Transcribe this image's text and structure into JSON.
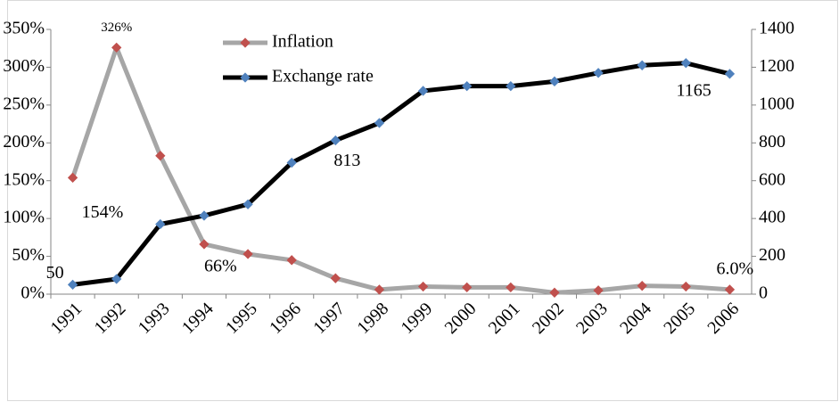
{
  "chart_data": {
    "type": "line",
    "categories": [
      "1991",
      "1992",
      "1993",
      "1994",
      "1995",
      "1996",
      "1997",
      "1998",
      "1999",
      "2000",
      "2001",
      "2002",
      "2003",
      "2004",
      "2005",
      "2006"
    ],
    "ylim": [
      0,
      350
    ],
    "yticks": [
      {
        "value": 0,
        "label": "0%"
      },
      {
        "value": 50,
        "label": "50%"
      },
      {
        "value": 100,
        "label": "100%"
      },
      {
        "value": 150,
        "label": "150%"
      },
      {
        "value": 200,
        "label": "200%"
      },
      {
        "value": 250,
        "label": "250%"
      },
      {
        "value": 300,
        "label": "300%"
      },
      {
        "value": 350,
        "label": "350%"
      }
    ],
    "y2lim": [
      0,
      1400
    ],
    "y2ticks": [
      0,
      200,
      400,
      600,
      800,
      1000,
      1200,
      1400
    ],
    "series": [
      {
        "name": "Inflation",
        "color": "#a6a6a6",
        "marker_color": "#c0504d",
        "values": [
          154,
          326,
          183,
          66,
          53,
          45,
          21,
          6,
          10,
          9,
          9,
          2,
          5,
          11,
          10,
          6
        ],
        "value_labels": [
          "154%",
          "326%",
          null,
          "66%",
          null,
          null,
          null,
          null,
          null,
          null,
          null,
          null,
          null,
          null,
          null,
          "6.0%"
        ]
      },
      {
        "name": "Exchange rate",
        "color": "#000000",
        "marker_color": "#4f81bd",
        "axis": "y2",
        "values": [
          50,
          80,
          370,
          415,
          475,
          695,
          813,
          905,
          1075,
          1100,
          1100,
          1125,
          1170,
          1210,
          1222,
          1165
        ],
        "value_labels": [
          "50",
          null,
          null,
          null,
          null,
          null,
          "813",
          null,
          null,
          null,
          null,
          null,
          null,
          null,
          null,
          "1165"
        ]
      }
    ]
  }
}
